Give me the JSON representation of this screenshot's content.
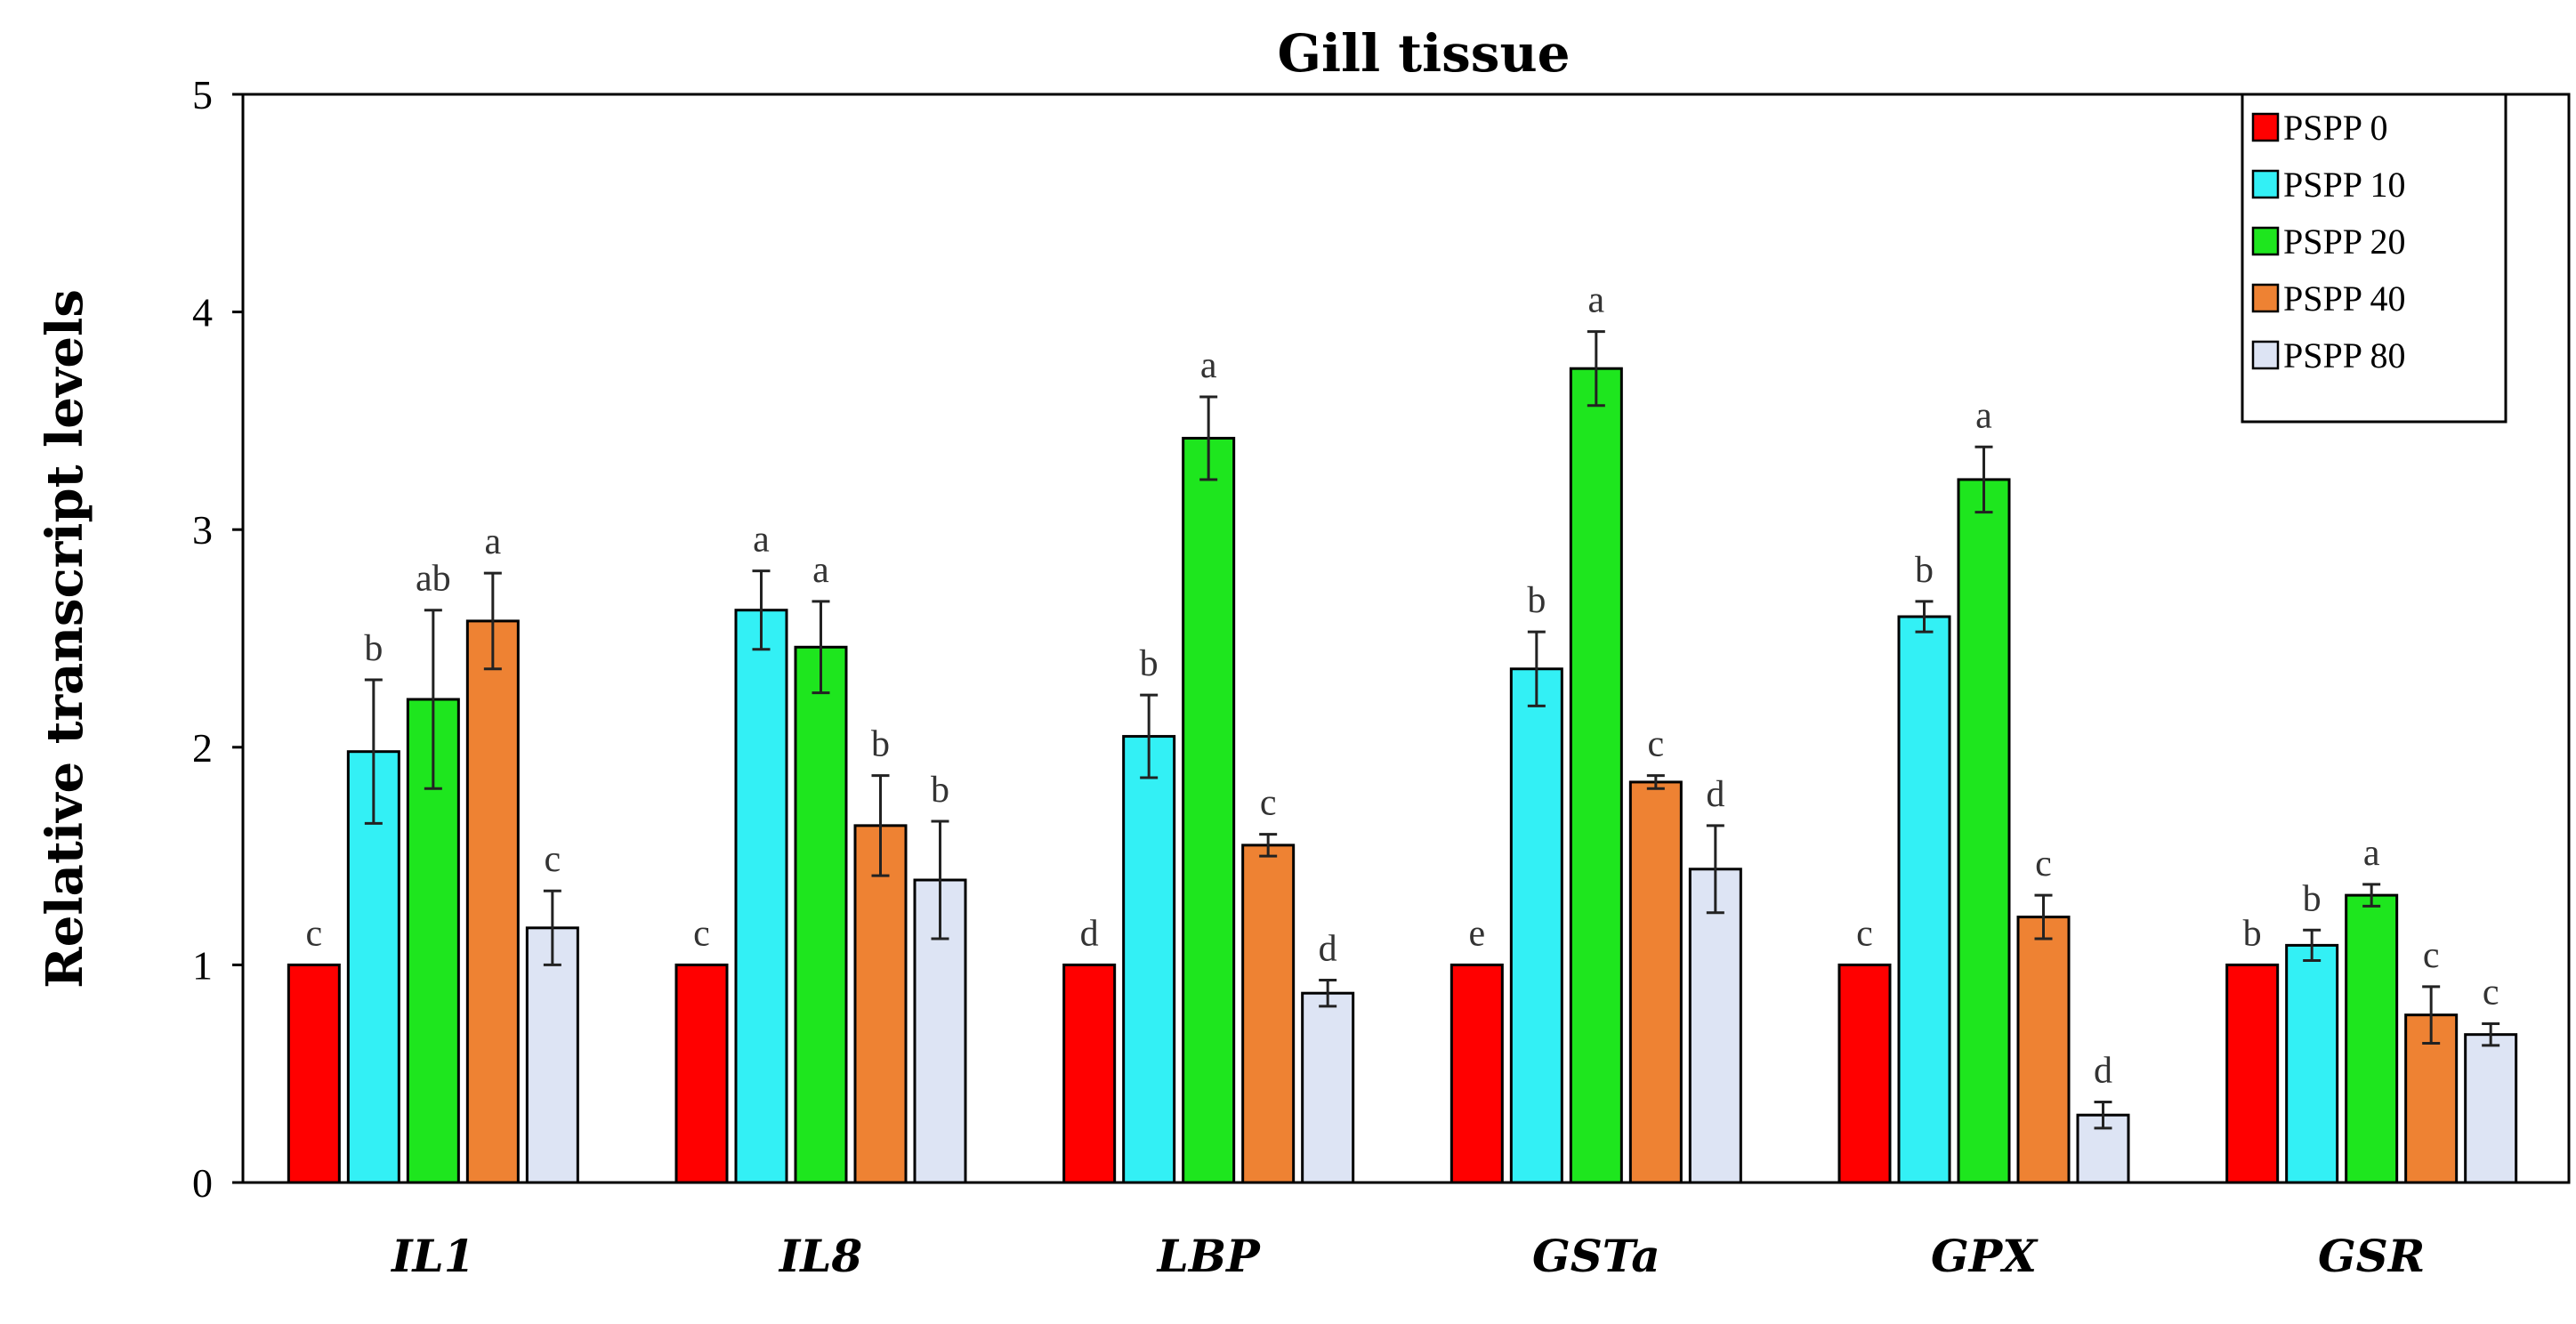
{
  "chart_data": {
    "type": "bar",
    "title": "Gill tissue",
    "xlabel": "",
    "ylabel": "Relative transcript levels",
    "ylim": [
      0,
      5
    ],
    "yticks": [
      "0",
      "1",
      "2",
      "3",
      "4",
      "5"
    ],
    "categories": [
      "IL1",
      "IL8",
      "LBP",
      "GSTa",
      "GPX",
      "GSR"
    ],
    "legend_position": "top-right",
    "series": [
      {
        "name": "PSPP 0",
        "color": "#ff0000",
        "values": [
          1.0,
          1.0,
          1.0,
          1.0,
          1.0,
          1.0
        ],
        "errors": [
          0,
          0,
          0,
          0,
          0,
          0
        ],
        "letters": [
          "c",
          "c",
          "d",
          "e",
          "c",
          "b"
        ]
      },
      {
        "name": "PSPP 10",
        "color": "#33f0f5",
        "values": [
          1.98,
          2.63,
          2.05,
          2.36,
          2.6,
          1.09
        ],
        "errors": [
          0.33,
          0.18,
          0.19,
          0.17,
          0.07,
          0.07
        ],
        "letters": [
          "b",
          "a",
          "b",
          "b",
          "b",
          "b"
        ]
      },
      {
        "name": "PSPP 20",
        "color": "#1ee61e",
        "values": [
          2.22,
          2.46,
          3.42,
          3.74,
          3.23,
          1.32
        ],
        "errors": [
          0.41,
          0.21,
          0.19,
          0.17,
          0.15,
          0.05
        ],
        "letters": [
          "ab",
          "a",
          "a",
          "a",
          "a",
          "a"
        ]
      },
      {
        "name": "PSPP 40",
        "color": "#ee8233",
        "values": [
          2.58,
          1.64,
          1.55,
          1.84,
          1.22,
          0.77
        ],
        "errors": [
          0.22,
          0.23,
          0.05,
          0.03,
          0.1,
          0.13
        ],
        "letters": [
          "a",
          "b",
          "c",
          "c",
          "c",
          "c"
        ]
      },
      {
        "name": "PSPP 80",
        "color": "#dde4f4",
        "values": [
          1.17,
          1.39,
          0.87,
          1.44,
          0.31,
          0.68
        ],
        "errors": [
          0.17,
          0.27,
          0.06,
          0.2,
          0.06,
          0.05
        ],
        "letters": [
          "c",
          "b",
          "d",
          "d",
          "d",
          "c"
        ]
      }
    ]
  }
}
